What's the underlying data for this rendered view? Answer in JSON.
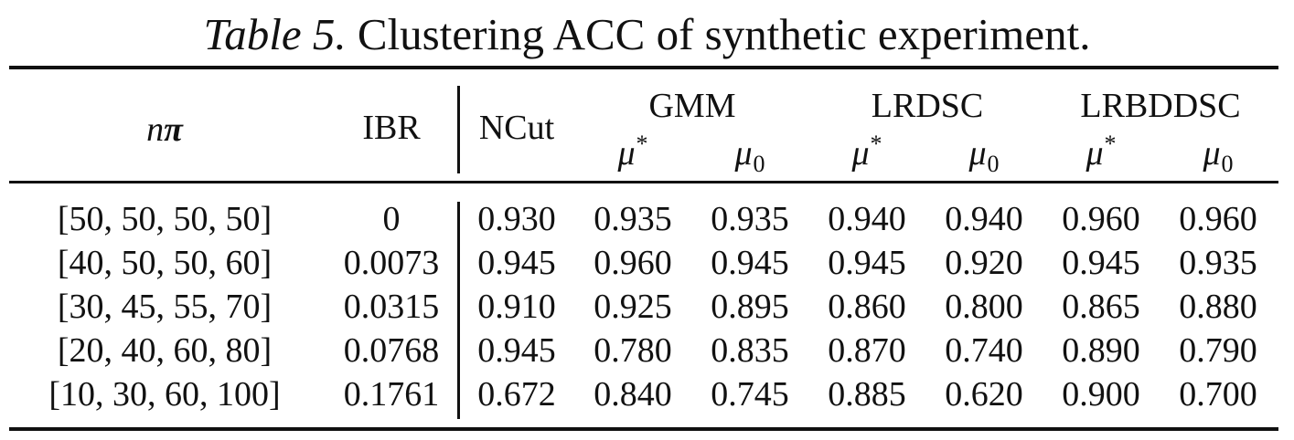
{
  "caption": {
    "label": "Table 5.",
    "text": "Clustering ACC of synthetic experiment."
  },
  "header": {
    "col_npi": "nπ",
    "col_ibr": "IBR",
    "col_ncut": "NCut",
    "groups": [
      "GMM",
      "LRDSC",
      "LRBDDSC"
    ],
    "mu_star": "μ",
    "mu_star_sup": "*",
    "mu_zero": "μ",
    "mu_zero_sub": "0"
  },
  "rows": [
    {
      "npi": "[50, 50, 50, 50]",
      "ibr": "0",
      "vals": [
        "0.930",
        "0.935",
        "0.935",
        "0.940",
        "0.940",
        "0.960",
        "0.960"
      ]
    },
    {
      "npi": "[40, 50, 50, 60]",
      "ibr": "0.0073",
      "vals": [
        "0.945",
        "0.960",
        "0.945",
        "0.945",
        "0.920",
        "0.945",
        "0.935"
      ]
    },
    {
      "npi": "[30, 45, 55, 70]",
      "ibr": "0.0315",
      "vals": [
        "0.910",
        "0.925",
        "0.895",
        "0.860",
        "0.800",
        "0.865",
        "0.880"
      ]
    },
    {
      "npi": "[20, 40, 60, 80]",
      "ibr": "0.0768",
      "vals": [
        "0.945",
        "0.780",
        "0.835",
        "0.870",
        "0.740",
        "0.890",
        "0.790"
      ]
    },
    {
      "npi": "[10, 30, 60, 100]",
      "ibr": "0.1761",
      "vals": [
        "0.672",
        "0.840",
        "0.745",
        "0.885",
        "0.620",
        "0.900",
        "0.700"
      ]
    }
  ]
}
